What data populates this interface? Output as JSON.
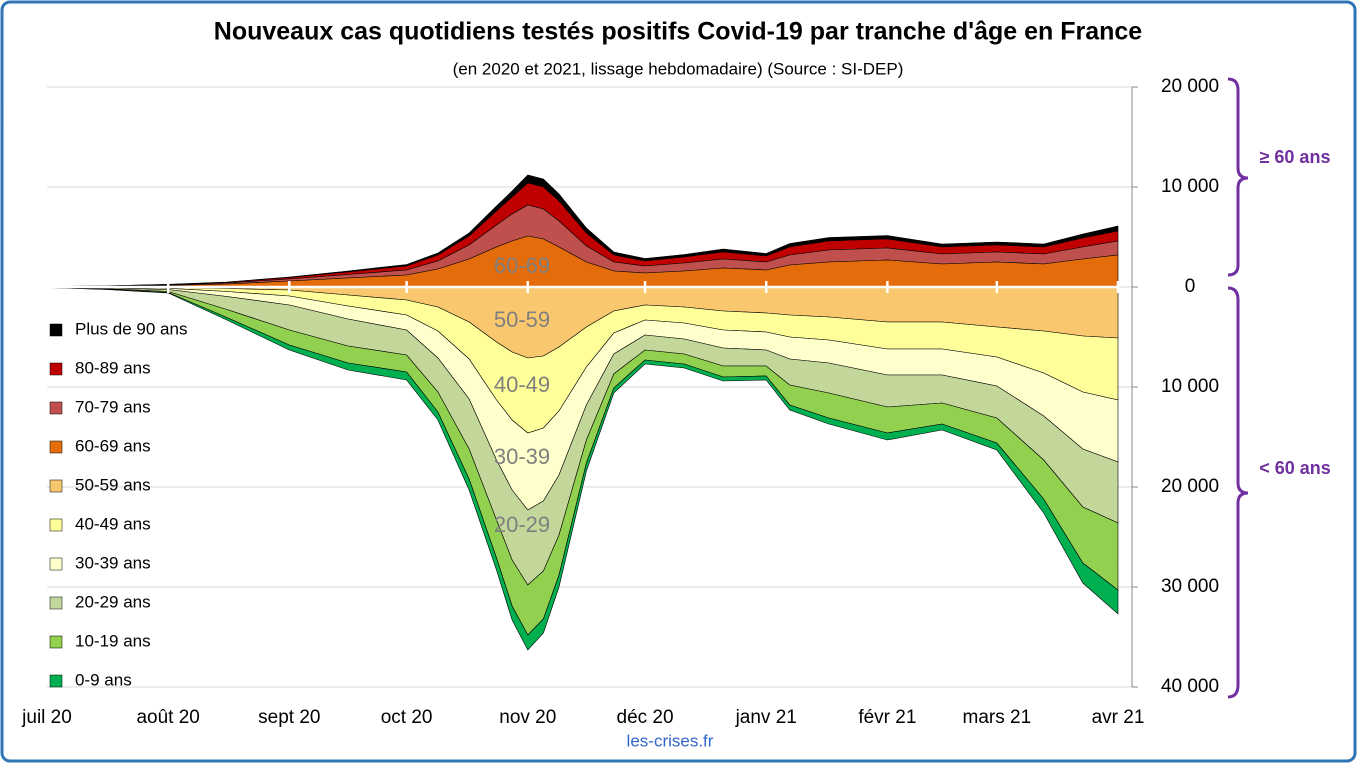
{
  "chart_data": {
    "type": "stacked_area",
    "title": "Nouveaux cas quotidiens testés positifs Covid-19 par tranche d'âge en France",
    "subtitle": "(en 2020 et 2021, lissage hebdomadaire) (Source : SI-DEP)",
    "annotations": [
      "60-69",
      "50-59",
      "40-49",
      "30-39",
      "20-29"
    ],
    "bracket_labels": [
      "≥ 60 ans",
      "< 60 ans"
    ],
    "source": "les-crises.fr",
    "x": [
      0,
      15,
      31,
      46,
      62,
      77,
      92,
      100,
      108,
      115,
      119,
      123,
      127,
      131,
      138,
      145,
      153,
      163,
      173,
      184,
      190,
      200,
      215,
      229,
      243,
      255,
      265,
      274
    ],
    "xlim": [
      0,
      274
    ],
    "xticks": [
      {
        "value": 0,
        "label": "juil 20"
      },
      {
        "value": 31,
        "label": "août 20"
      },
      {
        "value": 62,
        "label": "sept 20"
      },
      {
        "value": 92,
        "label": "oct 20"
      },
      {
        "value": 123,
        "label": "nov 20"
      },
      {
        "value": 153,
        "label": "déc 20"
      },
      {
        "value": 184,
        "label": "janv 21"
      },
      {
        "value": 215,
        "label": "févr 21"
      },
      {
        "value": 243,
        "label": "mars 21"
      },
      {
        "value": 274,
        "label": "avr 21"
      }
    ],
    "ylim": [
      -40000,
      20000
    ],
    "yticks": [
      {
        "value": 20000,
        "label": "20 000"
      },
      {
        "value": 10000,
        "label": "10 000"
      },
      0,
      {
        "value": -10000,
        "label": "10 000"
      },
      {
        "value": -20000,
        "label": "20 000"
      },
      {
        "value": -30000,
        "label": "30 000"
      },
      {
        "value": -40000,
        "label": "40 000"
      }
    ],
    "grid": true,
    "legend": "left",
    "series": [
      {
        "name": "Plus de 90 ans",
        "color": "#000000",
        "values": [
          5,
          10,
          20,
          30,
          50,
          100,
          150,
          200,
          300,
          500,
          600,
          800,
          800,
          700,
          500,
          300,
          250,
          250,
          300,
          250,
          350,
          350,
          350,
          300,
          300,
          300,
          400,
          500
        ]
      },
      {
        "name": "80-89 ans",
        "color": "#c00000",
        "values": [
          10,
          20,
          40,
          70,
          150,
          250,
          400,
          600,
          900,
          1400,
          1700,
          2200,
          2200,
          2000,
          1300,
          700,
          500,
          600,
          700,
          600,
          800,
          900,
          900,
          700,
          700,
          700,
          900,
          1000
        ]
      },
      {
        "name": "70-79 ans",
        "color": "#c0504d",
        "values": [
          10,
          30,
          60,
          100,
          200,
          350,
          500,
          800,
          1400,
          2200,
          2700,
          3100,
          3000,
          2600,
          1600,
          900,
          700,
          800,
          900,
          800,
          1000,
          1200,
          1200,
          1000,
          1000,
          1000,
          1200,
          1400
        ]
      },
      {
        "name": "60-69 ans",
        "color": "#e46c0a",
        "values": [
          20,
          60,
          150,
          300,
          600,
          900,
          1200,
          1800,
          2800,
          4000,
          4600,
          5100,
          4800,
          4000,
          2500,
          1600,
          1400,
          1600,
          1900,
          1700,
          2200,
          2500,
          2700,
          2300,
          2500,
          2300,
          2800,
          3200
        ]
      },
      {
        "name": "50-59 ans",
        "color": "#f9c86e",
        "values": [
          -10,
          -20,
          -50,
          -150,
          -300,
          -800,
          -1300,
          -2000,
          -3500,
          -5500,
          -6500,
          -7100,
          -6900,
          -6000,
          -4000,
          -2400,
          -1800,
          -2000,
          -2400,
          -2600,
          -2800,
          -3000,
          -3500,
          -3500,
          -4000,
          -4400,
          -4900,
          -5100
        ]
      },
      {
        "name": "40-49 ans",
        "color": "#ffff99",
        "values": [
          -10,
          -30,
          -80,
          -300,
          -600,
          -1100,
          -1500,
          -2400,
          -3700,
          -5800,
          -6800,
          -7500,
          -7200,
          -6400,
          -4000,
          -2200,
          -1500,
          -1600,
          -1900,
          -1900,
          -2200,
          -2300,
          -2700,
          -2700,
          -3000,
          -4200,
          -5600,
          -6200
        ]
      },
      {
        "name": "30-39 ans",
        "color": "#ffffcc",
        "values": [
          -10,
          -50,
          -120,
          -500,
          -900,
          -1300,
          -1500,
          -2700,
          -4000,
          -6000,
          -7000,
          -7700,
          -7300,
          -6400,
          -3800,
          -2100,
          -1500,
          -1600,
          -1800,
          -1800,
          -2200,
          -2300,
          -2600,
          -2600,
          -2900,
          -4300,
          -5700,
          -6200
        ]
      },
      {
        "name": "20-29 ans",
        "color": "#c4d79b",
        "values": [
          -10,
          -80,
          -200,
          -1300,
          -2500,
          -2700,
          -2500,
          -3400,
          -5000,
          -6000,
          -7000,
          -7500,
          -7000,
          -6000,
          -3500,
          -2000,
          -1500,
          -1500,
          -1800,
          -1600,
          -2600,
          -3000,
          -3200,
          -2800,
          -3200,
          -4400,
          -5800,
          -6100
        ]
      },
      {
        "name": "10-19 ans",
        "color": "#92d050",
        "values": [
          -10,
          -50,
          -100,
          -800,
          -1500,
          -1700,
          -1700,
          -2000,
          -3000,
          -3800,
          -4600,
          -5000,
          -4800,
          -4000,
          -2300,
          -1400,
          -1000,
          -1000,
          -1100,
          -1000,
          -2000,
          -2500,
          -2600,
          -2100,
          -2500,
          -3900,
          -5600,
          -6700
        ]
      },
      {
        "name": "0-9 ans",
        "color": "#00b050",
        "values": [
          -10,
          -20,
          -50,
          -250,
          -500,
          -700,
          -800,
          -800,
          -1100,
          -1200,
          -1400,
          -1500,
          -1400,
          -1200,
          -800,
          -500,
          -400,
          -400,
          -400,
          -400,
          -500,
          -600,
          -700,
          -600,
          -700,
          -1400,
          -2000,
          -2400
        ]
      }
    ]
  }
}
